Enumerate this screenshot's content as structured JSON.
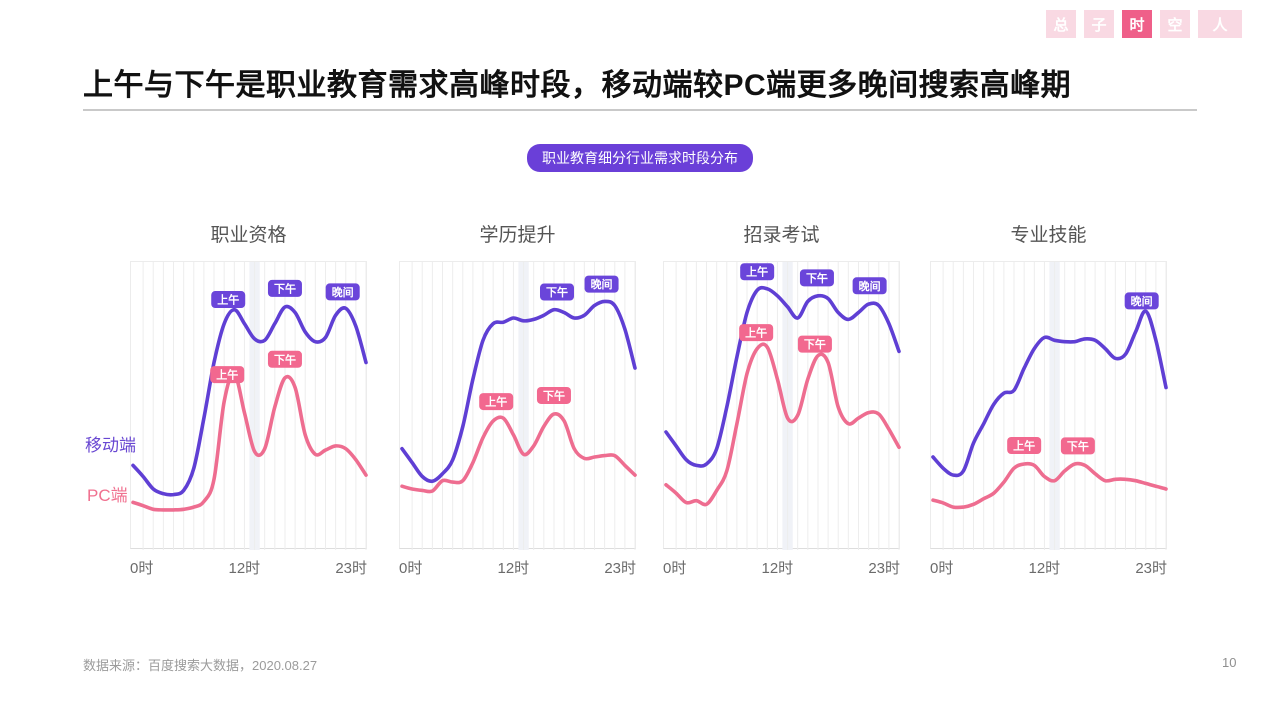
{
  "header": {
    "tabs": [
      {
        "label": "总",
        "active": false
      },
      {
        "label": "子",
        "active": false
      },
      {
        "label": "时",
        "active": true
      },
      {
        "label": "空",
        "active": false
      },
      {
        "label": "人",
        "active": false
      }
    ],
    "title": "上午与下午是职业教育需求高峰时段，移动端较PC端更多晚间搜索高峰期"
  },
  "badge": {
    "label": "职业教育细分行业需求时段分布"
  },
  "legend": {
    "mobile": "移动端",
    "pc": "PC端"
  },
  "colors": {
    "mobile_line": "#5f3fd4",
    "pc_line": "#ee6d90",
    "mobile_badge": "#6a45da",
    "pc_badge": "#f2688f",
    "pill": "#6a3fd8",
    "tab_active": "#ef5f89",
    "tab_inactive": "#f9d9e3",
    "grid": "#ededed",
    "noon_band": "#f0f2f7"
  },
  "footer": {
    "source": "数据来源：百度搜索大数据，2020.08.27",
    "page": "10"
  },
  "chart_data": [
    {
      "type": "line",
      "title": "职业资格",
      "x": [
        0,
        1,
        2,
        3,
        4,
        5,
        6,
        7,
        8,
        9,
        10,
        11,
        12,
        13,
        14,
        15,
        16,
        17,
        18,
        19,
        20,
        21,
        22,
        23
      ],
      "x_tick_labels": [
        "0时",
        "12时",
        "23时"
      ],
      "ylim": [
        0,
        100
      ],
      "grid": "hourly-vertical",
      "highlight_band_hour": 12,
      "legend_position": "left-of-plot",
      "series": [
        {
          "name": "移动端",
          "color": "#5f3fd4",
          "badge_color": "#6a45da",
          "values": [
            29,
            25,
            20.5,
            18.8,
            18.5,
            20,
            28,
            46,
            66,
            80,
            85,
            80,
            74.5,
            74,
            80,
            86,
            84,
            77,
            73.5,
            75,
            83,
            85.5,
            79,
            66
          ]
        },
        {
          "name": "PC端",
          "color": "#ee6d90",
          "badge_color": "#f2688f",
          "values": [
            15.7,
            14.5,
            13.2,
            13,
            13,
            13.2,
            14,
            16,
            24,
            52,
            62,
            48,
            34,
            35,
            50,
            60.5,
            57,
            40,
            33,
            34.5,
            36,
            35,
            31,
            25.5
          ]
        }
      ],
      "annotations": [
        {
          "series": 0,
          "label": "上午",
          "hour": 9.4
        },
        {
          "series": 0,
          "label": "下午",
          "hour": 15
        },
        {
          "series": 0,
          "label": "晚间",
          "hour": 20.7
        },
        {
          "series": 1,
          "label": "上午",
          "hour": 9.3
        },
        {
          "series": 1,
          "label": "下午",
          "hour": 15
        }
      ]
    },
    {
      "type": "line",
      "title": "学历提升",
      "x": [
        0,
        1,
        2,
        3,
        4,
        5,
        6,
        7,
        8,
        9,
        10,
        11,
        12,
        13,
        14,
        15,
        16,
        17,
        18,
        19,
        20,
        21,
        22,
        23
      ],
      "x_tick_labels": [
        "0时",
        "12时",
        "23时"
      ],
      "ylim": [
        0,
        100
      ],
      "grid": "hourly-vertical",
      "highlight_band_hour": 12,
      "series": [
        {
          "name": "移动端",
          "color": "#5f3fd4",
          "badge_color": "#6a45da",
          "values": [
            35,
            30,
            25,
            23.3,
            26,
            31,
            43,
            60,
            74,
            80,
            80.5,
            82,
            81,
            81.5,
            83,
            85,
            84,
            82,
            83,
            86.5,
            88,
            86.5,
            78,
            64
          ]
        },
        {
          "name": "PC端",
          "color": "#ee6d90",
          "badge_color": "#f2688f",
          "values": [
            21.5,
            20.5,
            20,
            19.8,
            23.5,
            23,
            23.5,
            30,
            39,
            45,
            46,
            40,
            33,
            36,
            43,
            47.5,
            45,
            35,
            31.5,
            32,
            32.5,
            32.5,
            29,
            25.5
          ]
        }
      ],
      "annotations": [
        {
          "series": 0,
          "label": "下午",
          "hour": 15.3
        },
        {
          "series": 0,
          "label": "晚间",
          "hour": 19.7
        },
        {
          "series": 1,
          "label": "上午",
          "hour": 9.3
        },
        {
          "series": 1,
          "label": "下午",
          "hour": 15
        }
      ]
    },
    {
      "type": "line",
      "title": "招录考试",
      "x": [
        0,
        1,
        2,
        3,
        4,
        5,
        6,
        7,
        8,
        9,
        10,
        11,
        12,
        13,
        14,
        15,
        16,
        17,
        18,
        19,
        20,
        21,
        22,
        23
      ],
      "x_tick_labels": [
        "0时",
        "12时",
        "23时"
      ],
      "ylim": [
        0,
        100
      ],
      "grid": "hourly-vertical",
      "highlight_band_hour": 12,
      "series": [
        {
          "name": "移动端",
          "color": "#5f3fd4",
          "badge_color": "#6a45da",
          "values": [
            41,
            36,
            31,
            29,
            29.5,
            35,
            50,
            68,
            84,
            92,
            92.5,
            90,
            86,
            82,
            88,
            90,
            89,
            84,
            81.5,
            84,
            87,
            86.5,
            80,
            70
          ]
        },
        {
          "name": "PC端",
          "color": "#ee6d90",
          "badge_color": "#f2688f",
          "values": [
            22,
            19,
            15.6,
            16.3,
            15,
            20,
            27,
            44,
            62,
            71,
            71.5,
            60,
            46,
            47,
            60,
            68.5,
            66,
            50,
            44,
            46,
            48,
            47.5,
            42,
            35.5
          ]
        }
      ],
      "annotations": [
        {
          "series": 0,
          "label": "上午",
          "hour": 9
        },
        {
          "series": 0,
          "label": "下午",
          "hour": 14.9
        },
        {
          "series": 0,
          "label": "晚间",
          "hour": 20.1
        },
        {
          "series": 1,
          "label": "上午",
          "hour": 8.9
        },
        {
          "series": 1,
          "label": "下午",
          "hour": 14.7
        }
      ]
    },
    {
      "type": "line",
      "title": "专业技能",
      "x": [
        0,
        1,
        2,
        3,
        4,
        5,
        6,
        7,
        8,
        9,
        10,
        11,
        12,
        13,
        14,
        15,
        16,
        17,
        18,
        19,
        20,
        21,
        22,
        23
      ],
      "x_tick_labels": [
        "0时",
        "12时",
        "23时"
      ],
      "ylim": [
        0,
        100
      ],
      "grid": "hourly-vertical",
      "highlight_band_hour": 12,
      "series": [
        {
          "name": "移动端",
          "color": "#5f3fd4",
          "badge_color": "#6a45da",
          "values": [
            32,
            28,
            25.5,
            27,
            37,
            44,
            51,
            55,
            56,
            64,
            71,
            75,
            74,
            73.5,
            73.5,
            74.5,
            74,
            71,
            67.5,
            69,
            77,
            84.5,
            74,
            57
          ]
        },
        {
          "name": "PC端",
          "color": "#ee6d90",
          "badge_color": "#f2688f",
          "values": [
            16.5,
            15.5,
            14,
            14,
            15,
            17,
            19,
            23,
            28,
            29.5,
            29,
            25,
            23.5,
            27,
            29.5,
            29,
            26,
            23.5,
            24,
            24,
            23.5,
            22.5,
            21.5,
            20.5
          ]
        }
      ],
      "annotations": [
        {
          "series": 0,
          "label": "晚间",
          "hour": 20.6
        },
        {
          "series": 1,
          "label": "上午",
          "hour": 9
        },
        {
          "series": 1,
          "label": "下午",
          "hour": 14.3
        }
      ]
    }
  ]
}
